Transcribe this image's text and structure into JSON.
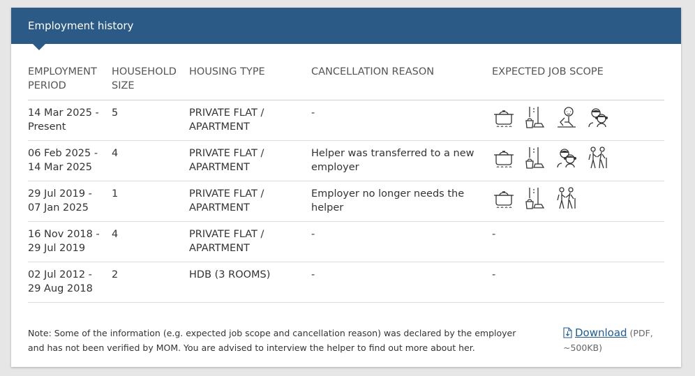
{
  "panel": {
    "title": "Employment history"
  },
  "table": {
    "headers": [
      "EMPLOYMENT PERIOD",
      "HOUSEHOLD SIZE",
      "HOUSING TYPE",
      "CANCELLATION REASON",
      "EXPECTED JOB SCOPE"
    ],
    "rows": [
      {
        "period": "14 Mar 2025 - Present",
        "household_size": "5",
        "housing_type": "PRIVATE FLAT / APARTMENT",
        "cancellation_reason": "-",
        "job_scope_icons": [
          "cooking-icon",
          "cleaning-icon",
          "infant-care-icon",
          "child-care-icon"
        ],
        "job_scope_text": ""
      },
      {
        "period": "06 Feb 2025 - 14 Mar 2025",
        "household_size": "4",
        "housing_type": "PRIVATE FLAT / APARTMENT",
        "cancellation_reason": "Helper was transferred to a new employer",
        "job_scope_icons": [
          "cooking-icon",
          "cleaning-icon",
          "child-care-icon",
          "elderly-care-icon"
        ],
        "job_scope_text": ""
      },
      {
        "period": "29 Jul 2019 - 07 Jan 2025",
        "household_size": "1",
        "housing_type": "PRIVATE FLAT / APARTMENT",
        "cancellation_reason": "Employer no longer needs the helper",
        "job_scope_icons": [
          "cooking-icon",
          "cleaning-icon",
          "elderly-care-icon"
        ],
        "job_scope_text": ""
      },
      {
        "period": "16 Nov 2018 - 29 Jul 2019",
        "household_size": "4",
        "housing_type": "PRIVATE FLAT / APARTMENT",
        "cancellation_reason": "-",
        "job_scope_icons": [],
        "job_scope_text": "-"
      },
      {
        "period": "02 Jul 2012 - 29 Aug 2018",
        "household_size": "2",
        "housing_type": "HDB (3 ROOMS)",
        "cancellation_reason": "-",
        "job_scope_icons": [],
        "job_scope_text": "-"
      }
    ]
  },
  "note": "Note: Some of the information (e.g. expected job scope and cancellation reason) was declared by the employer and has not been verified by MOM. You are advised to interview the helper to find out more about her.",
  "download": {
    "label": "Download",
    "meta": "(PDF, ~500KB)"
  }
}
